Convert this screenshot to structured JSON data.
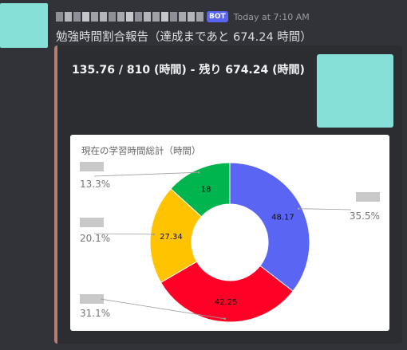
{
  "message": {
    "bot_badge": "BOT",
    "timestamp": "Today at 7:10 AM",
    "text": "勉強時間割合報告（達成まであと 674.24 時間）"
  },
  "embed": {
    "title": "135.76 / 810 (時間) - 残り 674.24 (時間)"
  },
  "colors": {
    "embed_accent": "#b58072",
    "series": [
      "#5b65f4",
      "#ff0026",
      "#ffc300",
      "#00b44e"
    ]
  },
  "chart_data": {
    "type": "pie",
    "title": "現在の学習時間総計（時間）",
    "values": [
      48.17,
      42.25,
      27.34,
      18
    ],
    "percentages": [
      "35.5%",
      "31.1%",
      "20.1%",
      "13.3%"
    ],
    "colors": [
      "#5b65f4",
      "#ff0026",
      "#ffc300",
      "#00b44e"
    ]
  }
}
